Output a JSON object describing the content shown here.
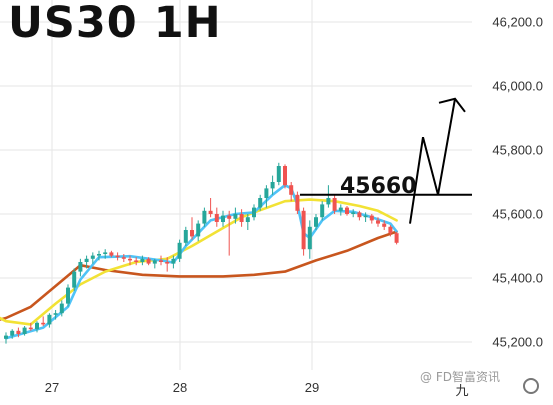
{
  "chart_data": {
    "type": "candlestick",
    "title": "US30 1H",
    "annotation_label": "45660",
    "x_tick_labels": [
      "27",
      "28",
      "29",
      "九"
    ],
    "y_ticks": [
      45200,
      45400,
      45600,
      45800,
      46000,
      46200
    ],
    "y_tick_labels": [
      "45,200.0",
      "45,400.0",
      "45,600.0",
      "45,800.0",
      "46,000.0",
      "46,200.0"
    ],
    "ylim": [
      45130,
      46250
    ],
    "resistance_level": 45660,
    "projected_path": [
      45570,
      45840,
      45660,
      45960
    ],
    "grid": true,
    "colors": {
      "up": "#26a69a",
      "down": "#ef5350",
      "ma_fast": "#4fc3f7",
      "ma_mid": "#f2e235",
      "ma_slow": "#c8561e",
      "annotation": "#000000",
      "grid": "#e6e6e6"
    },
    "candles": [
      [
        45210,
        45230,
        45195,
        45220
      ],
      [
        45220,
        45240,
        45210,
        45235
      ],
      [
        45235,
        45245,
        45215,
        45225
      ],
      [
        45225,
        45250,
        45220,
        45245
      ],
      [
        45245,
        45260,
        45235,
        45240
      ],
      [
        45240,
        45265,
        45230,
        45260
      ],
      [
        45260,
        45280,
        45250,
        45255
      ],
      [
        45255,
        45290,
        45245,
        45285
      ],
      [
        45285,
        45300,
        45270,
        45290
      ],
      [
        45290,
        45330,
        45280,
        45320
      ],
      [
        45320,
        45380,
        45310,
        45370
      ],
      [
        45370,
        45430,
        45360,
        45420
      ],
      [
        45420,
        45460,
        45405,
        45450
      ],
      [
        45450,
        45470,
        45430,
        45460
      ],
      [
        45460,
        45480,
        45445,
        45470
      ],
      [
        45470,
        45485,
        45455,
        45475
      ],
      [
        45475,
        45490,
        45460,
        45480
      ],
      [
        45480,
        45485,
        45465,
        45470
      ],
      [
        45470,
        45480,
        45455,
        45465
      ],
      [
        45465,
        45475,
        45450,
        45460
      ],
      [
        45460,
        45470,
        45440,
        45455
      ],
      [
        45455,
        45465,
        45440,
        45450
      ],
      [
        45450,
        45470,
        45440,
        45460
      ],
      [
        45460,
        45465,
        45440,
        45445
      ],
      [
        45445,
        45460,
        45430,
        45455
      ],
      [
        45455,
        45470,
        45440,
        45450
      ],
      [
        45450,
        45465,
        45420,
        45445
      ],
      [
        45445,
        45470,
        45430,
        45460
      ],
      [
        45460,
        45520,
        45450,
        45510
      ],
      [
        45510,
        45560,
        45500,
        45550
      ],
      [
        45550,
        45590,
        45520,
        45530
      ],
      [
        45530,
        45580,
        45515,
        45570
      ],
      [
        45570,
        45620,
        45560,
        45610
      ],
      [
        45610,
        45650,
        45590,
        45600
      ],
      [
        45600,
        45620,
        45560,
        45575
      ],
      [
        45575,
        45610,
        45560,
        45595
      ],
      [
        45595,
        45610,
        45470,
        45585
      ],
      [
        45585,
        45620,
        45570,
        45600
      ],
      [
        45600,
        45615,
        45560,
        45575
      ],
      [
        45575,
        45600,
        45550,
        45590
      ],
      [
        45590,
        45630,
        45580,
        45620
      ],
      [
        45620,
        45660,
        45610,
        45650
      ],
      [
        45650,
        45690,
        45620,
        45680
      ],
      [
        45680,
        45720,
        45660,
        45700
      ],
      [
        45700,
        45760,
        45690,
        45750
      ],
      [
        45750,
        45755,
        45680,
        45690
      ],
      [
        45690,
        45700,
        45640,
        45660
      ],
      [
        45660,
        45670,
        45600,
        45610
      ],
      [
        45610,
        45620,
        45470,
        45490
      ],
      [
        45490,
        45580,
        45460,
        45560
      ],
      [
        45560,
        45600,
        45550,
        45590
      ],
      [
        45590,
        45640,
        45580,
        45630
      ],
      [
        45630,
        45690,
        45620,
        45650
      ],
      [
        45650,
        45660,
        45600,
        45610
      ],
      [
        45610,
        45630,
        45595,
        45620
      ],
      [
        45620,
        45625,
        45595,
        45600
      ],
      [
        45600,
        45615,
        45590,
        45605
      ],
      [
        45605,
        45610,
        45580,
        45590
      ],
      [
        45590,
        45605,
        45575,
        45595
      ],
      [
        45595,
        45600,
        45570,
        45580
      ],
      [
        45580,
        45590,
        45560,
        45570
      ],
      [
        45570,
        45580,
        45550,
        45560
      ],
      [
        45560,
        45565,
        45530,
        45540
      ],
      [
        45540,
        45545,
        45505,
        45510
      ]
    ],
    "ma_fast": [
      [
        0,
        45212
      ],
      [
        6,
        45245
      ],
      [
        10,
        45310
      ],
      [
        12,
        45395
      ],
      [
        15,
        45465
      ],
      [
        20,
        45468
      ],
      [
        25,
        45455
      ],
      [
        27,
        45448
      ],
      [
        29,
        45500
      ],
      [
        31,
        45540
      ],
      [
        33,
        45580
      ],
      [
        37,
        45600
      ],
      [
        40,
        45605
      ],
      [
        43,
        45660
      ],
      [
        45,
        45690
      ],
      [
        46,
        45680
      ],
      [
        47,
        45630
      ],
      [
        48,
        45540
      ],
      [
        49,
        45525
      ],
      [
        51,
        45580
      ],
      [
        53,
        45610
      ],
      [
        56,
        45607
      ],
      [
        59,
        45590
      ],
      [
        62,
        45570
      ],
      [
        63,
        45545
      ]
    ],
    "ma_mid": [
      [
        -6,
        45325
      ],
      [
        0,
        45265
      ],
      [
        4,
        45255
      ],
      [
        8,
        45320
      ],
      [
        12,
        45380
      ],
      [
        16,
        45420
      ],
      [
        21,
        45450
      ],
      [
        26,
        45460
      ],
      [
        30,
        45500
      ],
      [
        34,
        45545
      ],
      [
        38,
        45590
      ],
      [
        41,
        45612
      ],
      [
        45,
        45640
      ],
      [
        49,
        45645
      ],
      [
        53,
        45640
      ],
      [
        57,
        45625
      ],
      [
        60,
        45610
      ],
      [
        63,
        45580
      ]
    ],
    "ma_slow": [
      [
        -6,
        45245
      ],
      [
        0,
        45275
      ],
      [
        4,
        45310
      ],
      [
        8,
        45375
      ],
      [
        12,
        45440
      ],
      [
        16,
        45425
      ],
      [
        22,
        45410
      ],
      [
        28,
        45405
      ],
      [
        35,
        45405
      ],
      [
        40,
        45410
      ],
      [
        45,
        45420
      ],
      [
        50,
        45455
      ],
      [
        55,
        45485
      ],
      [
        60,
        45525
      ],
      [
        63,
        45545
      ]
    ]
  }
}
